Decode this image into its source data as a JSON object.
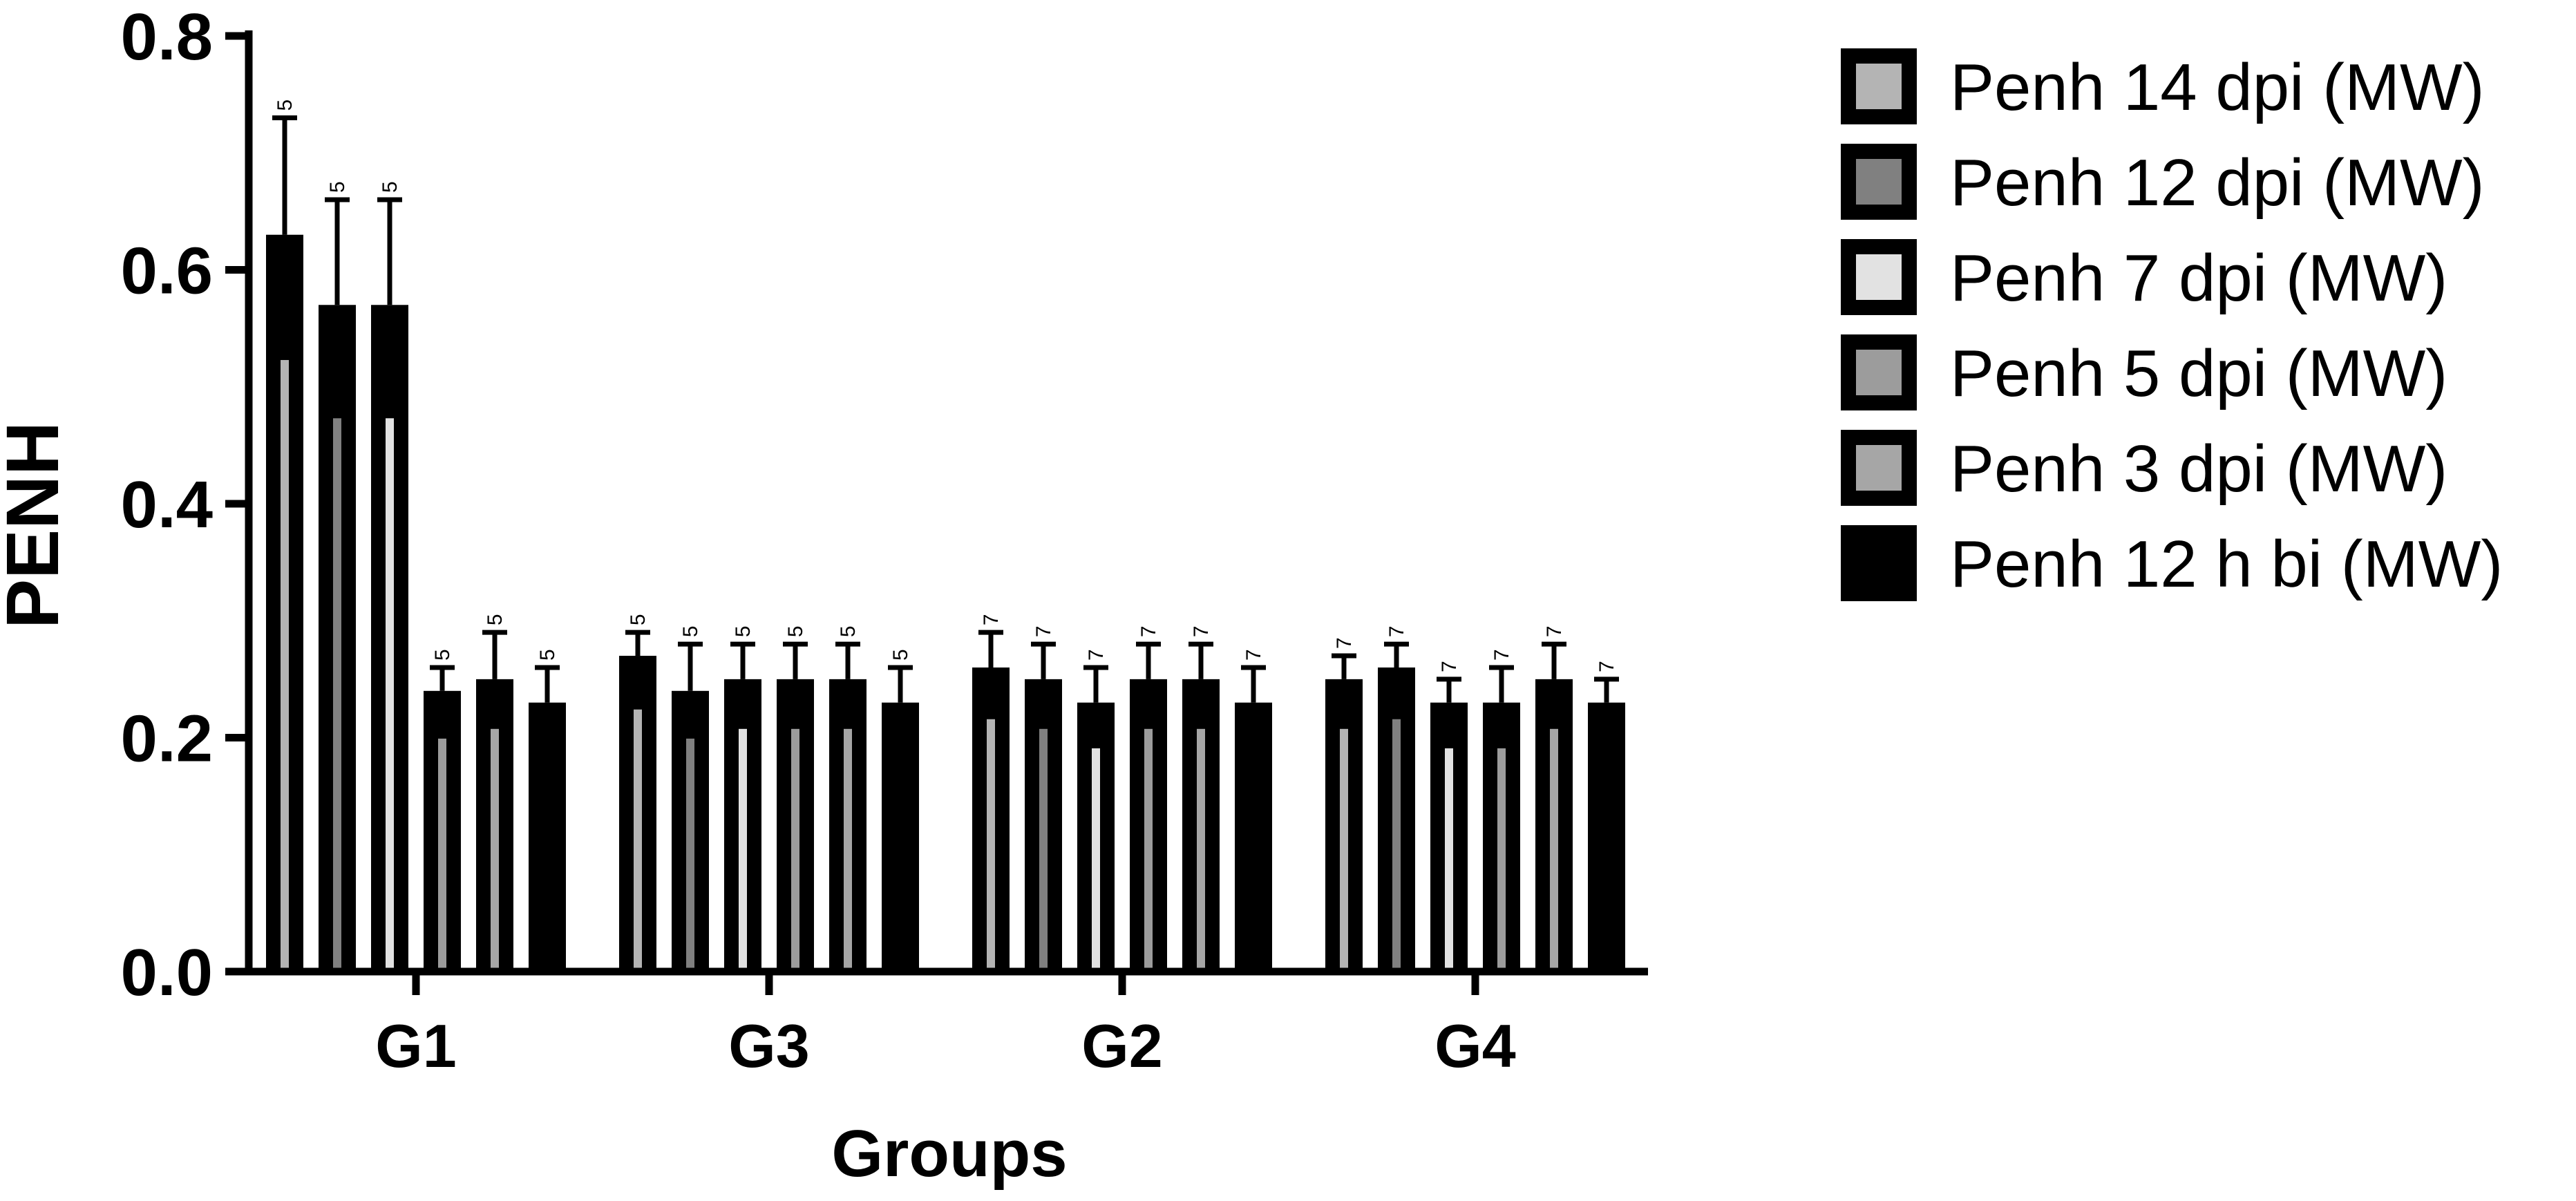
{
  "chart_data": {
    "type": "bar",
    "xlabel": "Groups",
    "ylabel": "PENH",
    "ylim": [
      0,
      0.8
    ],
    "yticks": [
      "0.0",
      "0.2",
      "0.4",
      "0.6",
      "0.8"
    ],
    "categories": [
      "G1",
      "G3",
      "G2",
      "G4"
    ],
    "grid": false,
    "legend_position": "right",
    "series": [
      {
        "name": "Penh 12 h bi (MW)",
        "color": "#000000",
        "values": [
          0.23,
          0.23,
          0.23,
          0.23
        ],
        "errors": [
          0.03,
          0.03,
          0.03,
          0.02
        ],
        "n": [
          "5",
          "5",
          "7",
          "7"
        ]
      },
      {
        "name": "Penh 3 dpi (MW)",
        "color": "#a6a6a6",
        "values": [
          0.25,
          0.25,
          0.25,
          0.25
        ],
        "errors": [
          0.04,
          0.03,
          0.03,
          0.03
        ],
        "n": [
          "5",
          "5",
          "7",
          "7"
        ]
      },
      {
        "name": "Penh 5 dpi (MW)",
        "color": "#9c9c9c",
        "values": [
          0.24,
          0.25,
          0.25,
          0.23
        ],
        "errors": [
          0.02,
          0.03,
          0.03,
          0.03
        ],
        "n": [
          "5",
          "5",
          "7",
          "7"
        ]
      },
      {
        "name": "Penh 7 dpi (MW)",
        "color": "#e2e2e2",
        "values": [
          0.57,
          0.25,
          0.23,
          0.23
        ],
        "errors": [
          0.09,
          0.03,
          0.03,
          0.02
        ],
        "n": [
          "5",
          "5",
          "7",
          "7"
        ]
      },
      {
        "name": "Penh 12 dpi (MW)",
        "color": "#808080",
        "values": [
          0.57,
          0.24,
          0.25,
          0.26
        ],
        "errors": [
          0.09,
          0.04,
          0.03,
          0.02
        ],
        "n": [
          "5",
          "5",
          "7",
          "7"
        ]
      },
      {
        "name": "Penh 14 dpi (MW)",
        "color": "#b4b4b4",
        "values": [
          0.63,
          0.27,
          0.26,
          0.25
        ],
        "errors": [
          0.1,
          0.02,
          0.03,
          0.02
        ],
        "n": [
          "5",
          "5",
          "7",
          "7"
        ]
      }
    ],
    "legend_order": [
      "Penh 14 dpi (MW)",
      "Penh 12 dpi (MW)",
      "Penh 7 dpi (MW)",
      "Penh 5 dpi (MW)",
      "Penh 3 dpi (MW)",
      "Penh 12 h bi (MW)"
    ]
  }
}
